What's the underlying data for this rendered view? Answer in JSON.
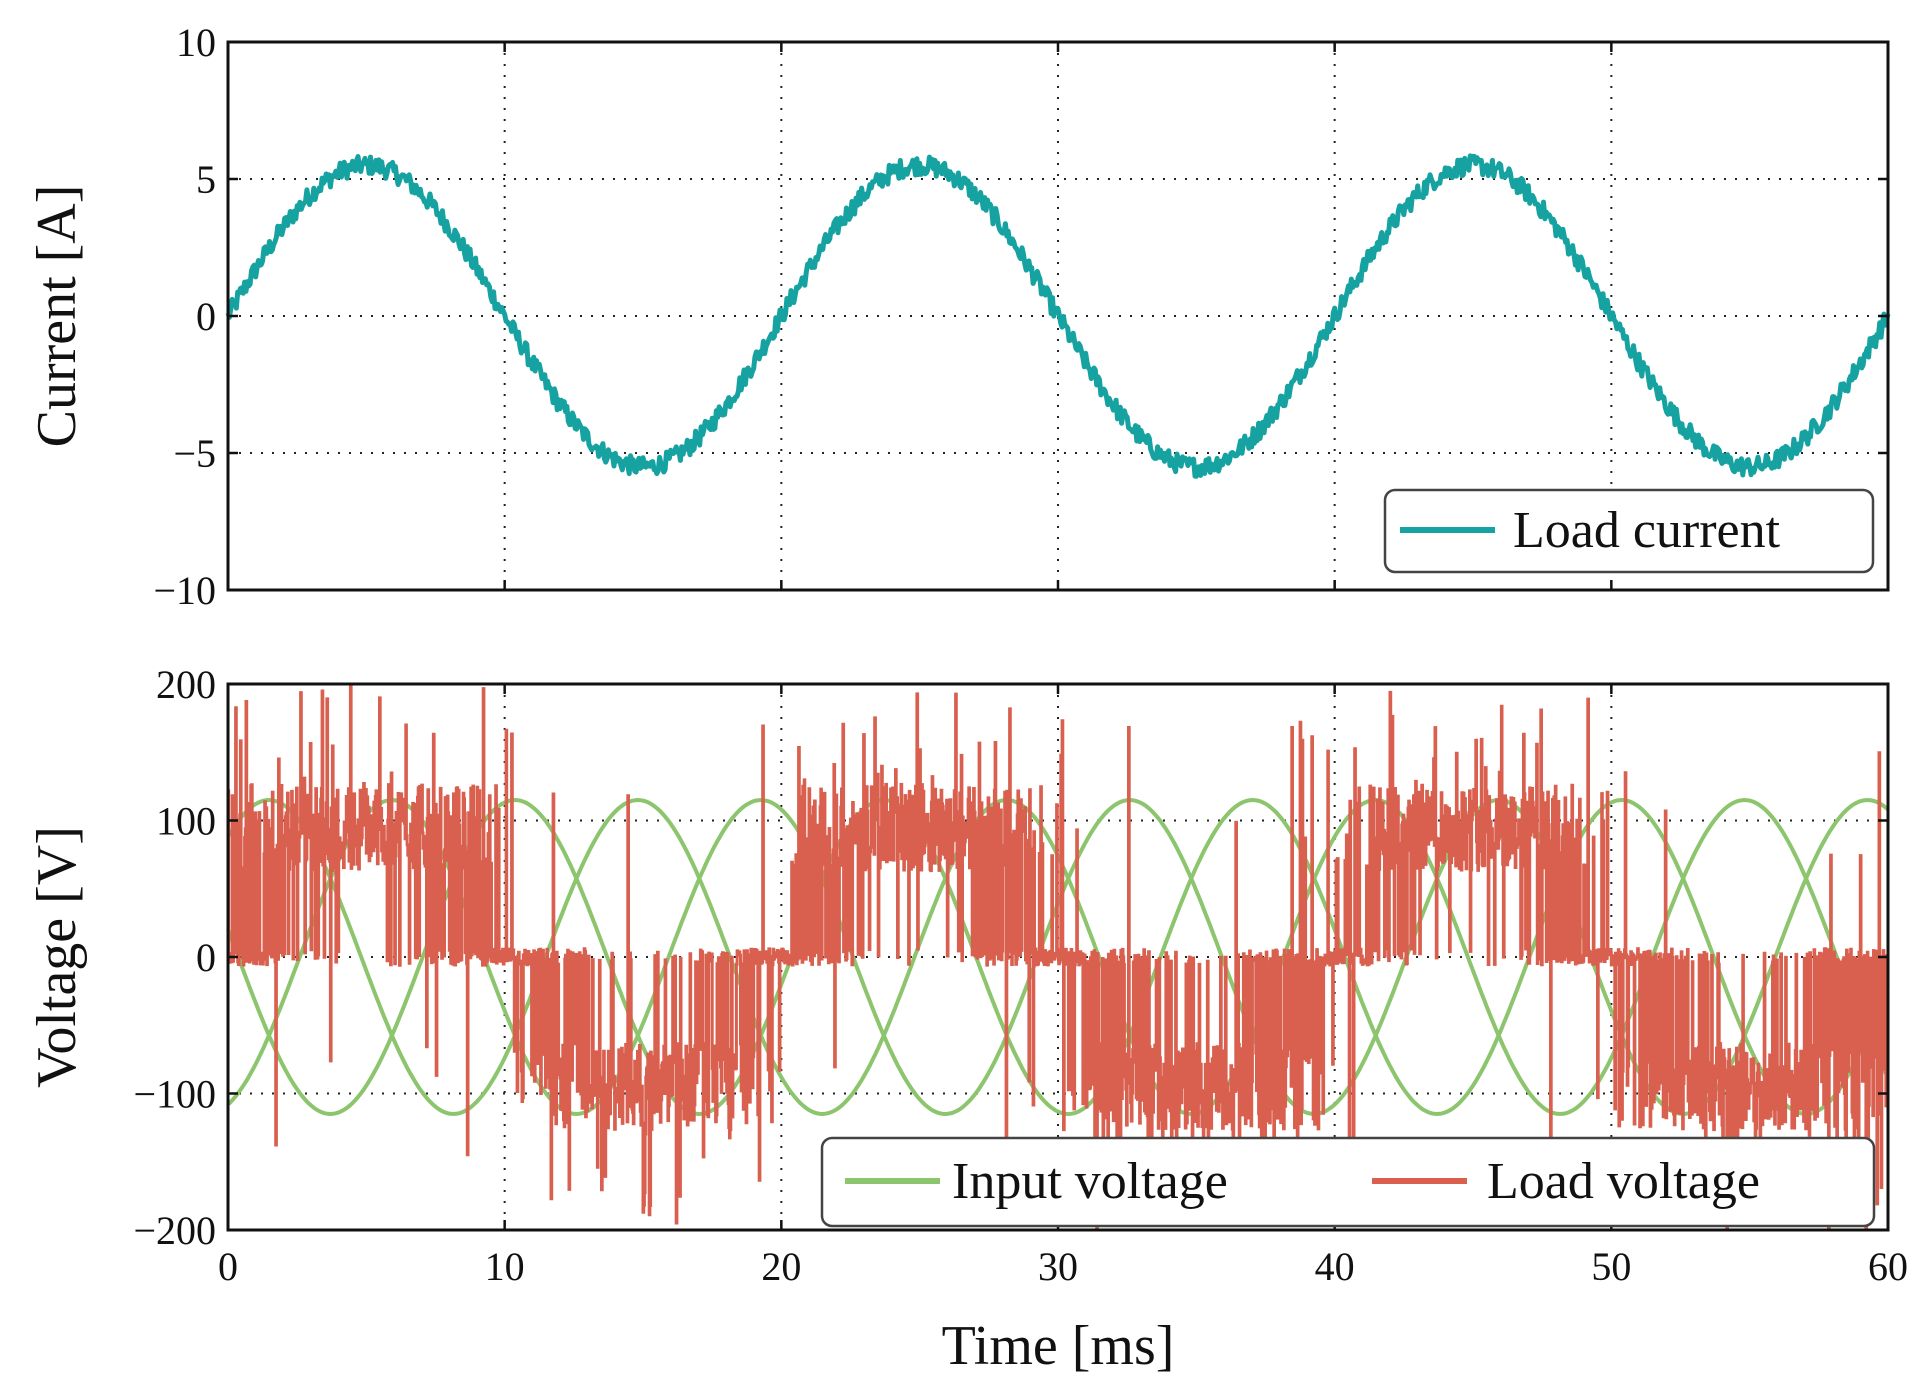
{
  "chart_data": [
    {
      "type": "line",
      "id": "top",
      "ylabel": "Current [A]",
      "xlim": [
        0,
        60
      ],
      "ylim": [
        -10,
        10
      ],
      "xticks": [
        0,
        10,
        20,
        30,
        40,
        50,
        60
      ],
      "yticks": [
        -10,
        -5,
        0,
        5,
        10
      ],
      "ytick_labels": [
        "−10",
        "−5",
        "0",
        "5",
        "10"
      ],
      "grid": true,
      "legend_position": "bottom-right",
      "series": [
        {
          "name": "Load current",
          "kind": "sine",
          "amplitude": 5.5,
          "frequency_hz": 50,
          "phase_deg": 0,
          "noise": 0.35,
          "color": "#17a2a2"
        }
      ]
    },
    {
      "type": "line",
      "id": "bottom",
      "ylabel": "Voltage [V]",
      "xlabel": "Time [ms]",
      "xlim": [
        0,
        60
      ],
      "ylim": [
        -200,
        200
      ],
      "xticks": [
        0,
        10,
        20,
        30,
        40,
        50,
        60
      ],
      "xtick_labels": [
        "0",
        "10",
        "20",
        "30",
        "40",
        "50",
        "60"
      ],
      "yticks": [
        -200,
        -100,
        0,
        100,
        200
      ],
      "ytick_labels": [
        "−200",
        "−100",
        "0",
        "100",
        "200"
      ],
      "grid": true,
      "legend_position": "bottom-right",
      "series": [
        {
          "name": "Input voltage",
          "kind": "three-phase-sine",
          "amplitude": 115,
          "frequency_hz": 75,
          "phases_deg": [
            50,
            170,
            290
          ],
          "color": "#8cc56d"
        },
        {
          "name": "Load voltage",
          "kind": "pwm-switching",
          "envelope_frequency_hz": 50,
          "peak_levels": [
            115,
            -115
          ],
          "max_spike": 200,
          "color": "#d95f4e"
        }
      ]
    }
  ]
}
